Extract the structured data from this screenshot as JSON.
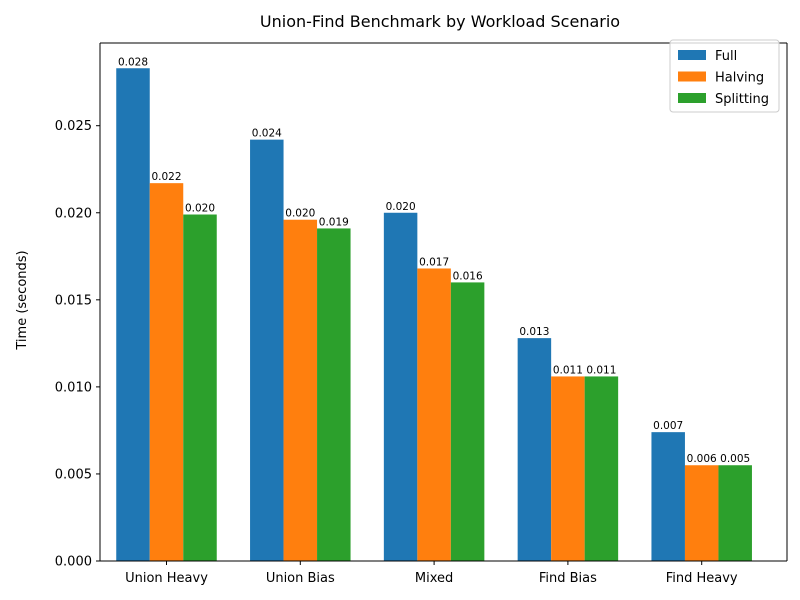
{
  "chart_data": {
    "type": "bar",
    "title": "Union-Find Benchmark by Workload Scenario",
    "xlabel": "",
    "ylabel": "Time (seconds)",
    "categories": [
      "Union Heavy",
      "Union Bias",
      "Mixed",
      "Find Bias",
      "Find Heavy"
    ],
    "series": [
      {
        "name": "Full",
        "color": "#1f77b4",
        "values": [
          0.0283,
          0.0242,
          0.02,
          0.0128,
          0.0074
        ],
        "labels": [
          "0.028",
          "0.024",
          "0.020",
          "0.013",
          "0.007"
        ]
      },
      {
        "name": "Halving",
        "color": "#ff7f0e",
        "values": [
          0.0217,
          0.0196,
          0.0168,
          0.0106,
          0.0055
        ],
        "labels": [
          "0.022",
          "0.020",
          "0.017",
          "0.011",
          "0.006"
        ]
      },
      {
        "name": "Splitting",
        "color": "#2ca02c",
        "values": [
          0.0199,
          0.0191,
          0.016,
          0.0106,
          0.0055
        ],
        "labels": [
          "0.020",
          "0.019",
          "0.016",
          "0.011",
          "0.005"
        ]
      }
    ],
    "ylim": [
      0,
      0.02975
    ],
    "yticks": [
      0.0,
      0.005,
      0.01,
      0.015,
      0.02,
      0.025
    ],
    "ytick_labels": [
      "0.000",
      "0.005",
      "0.010",
      "0.015",
      "0.020",
      "0.025"
    ],
    "grid": false,
    "legend_position": "top-right"
  }
}
